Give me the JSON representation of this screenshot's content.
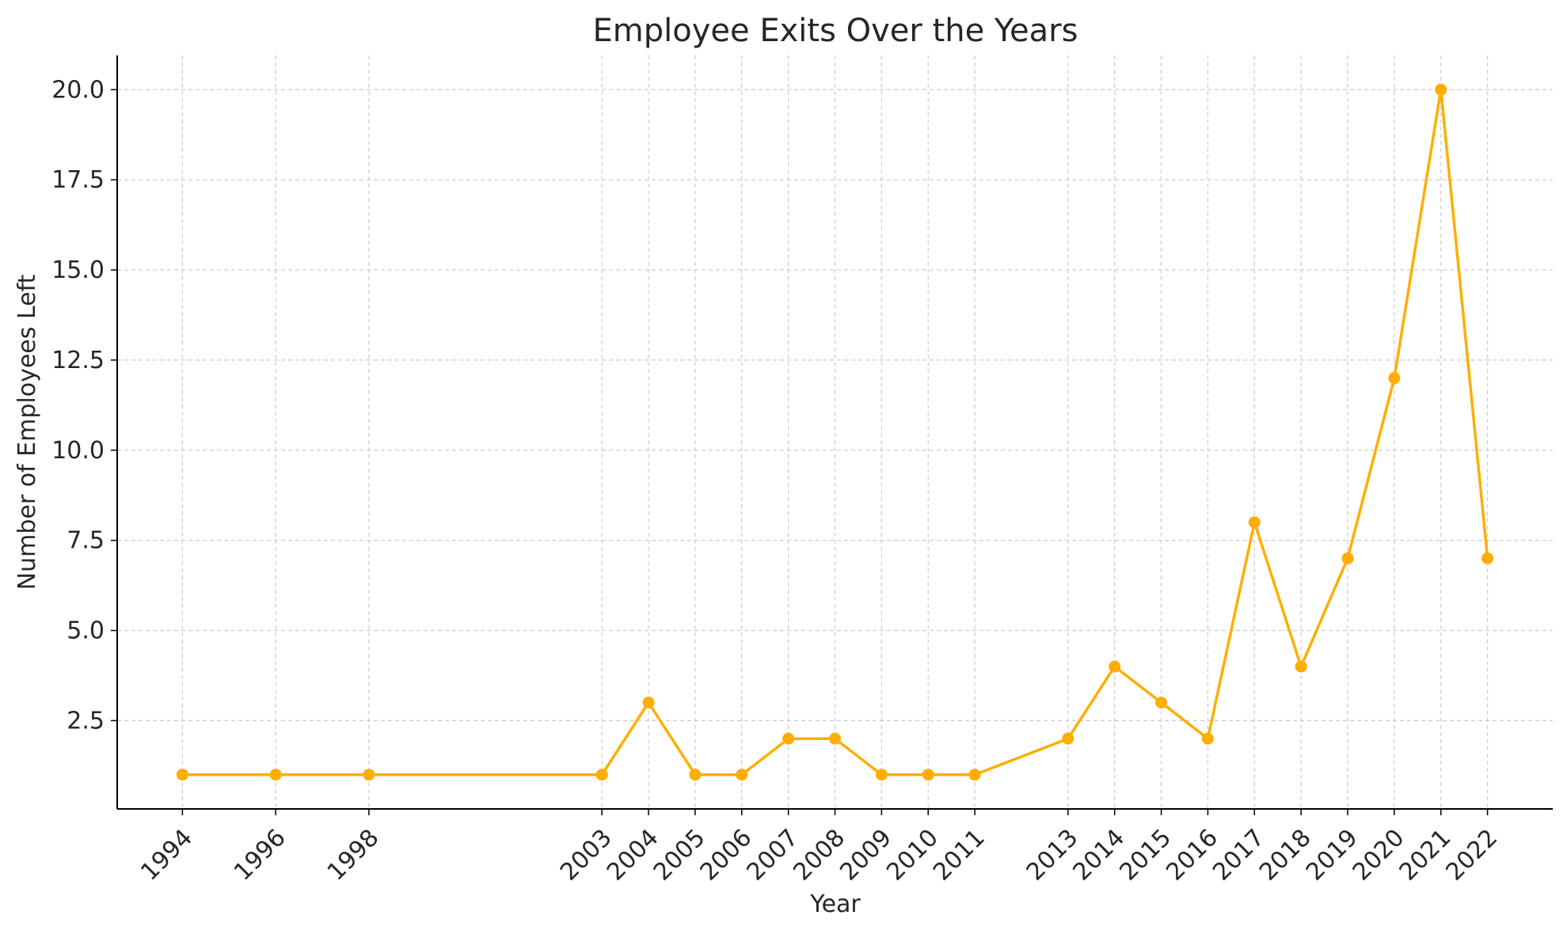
{
  "chart_data": {
    "type": "line",
    "title": "Employee Exits Over the Years",
    "xlabel": "Year",
    "ylabel": "Number of Employees Left",
    "x": [
      1994,
      1996,
      1998,
      2003,
      2004,
      2005,
      2006,
      2007,
      2008,
      2009,
      2010,
      2011,
      2013,
      2014,
      2015,
      2016,
      2017,
      2018,
      2019,
      2020,
      2021,
      2022
    ],
    "x_tick_labels": [
      "1994",
      "1996",
      "1998",
      "2003",
      "2004",
      "2005",
      "2006",
      "2007",
      "2008",
      "2009",
      "2010",
      "2011",
      "2013",
      "2014",
      "2015",
      "2016",
      "2017",
      "2018",
      "2019",
      "2020",
      "2021",
      "2022"
    ],
    "series": [
      {
        "values": [
          1,
          1,
          1,
          1,
          3,
          1,
          1,
          2,
          2,
          1,
          1,
          1,
          2,
          4,
          3,
          2,
          8,
          4,
          7,
          12,
          20,
          7
        ]
      }
    ],
    "y_ticks": [
      2.5,
      5.0,
      7.5,
      10.0,
      12.5,
      15.0,
      17.5,
      20.0
    ],
    "y_tick_labels": [
      "2.5",
      "5.0",
      "7.5",
      "10.0",
      "12.5",
      "15.0",
      "17.5",
      "20.0"
    ],
    "xlim": [
      1992.6,
      2023.4
    ],
    "ylim": [
      0.05,
      20.95
    ],
    "grid": true,
    "line_color": "#FFAE00",
    "grid_color": "#CCCCCC",
    "axis_color": "#000000"
  }
}
